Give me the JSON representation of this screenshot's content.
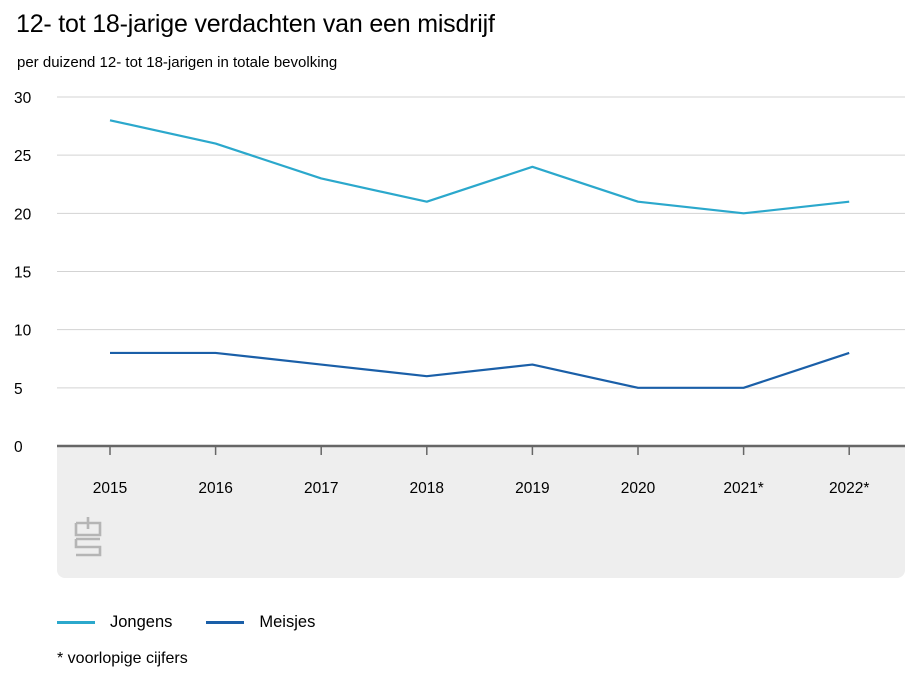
{
  "title": "12- tot 18-jarige verdachten van een misdrijf",
  "subtitle": "per duizend 12- tot 18-jarigen in totale bevolking",
  "footnote": "* voorlopige cijfers",
  "chart_data": {
    "type": "line",
    "categories": [
      "2015",
      "2016",
      "2017",
      "2018",
      "2019",
      "2020",
      "2021*",
      "2022*"
    ],
    "series": [
      {
        "name": "Jongens",
        "color": "#2ba8cc",
        "values": [
          28,
          26,
          23,
          21,
          24,
          21,
          20,
          21
        ]
      },
      {
        "name": "Meisjes",
        "color": "#1a5fa8",
        "values": [
          8,
          8,
          7,
          6,
          7,
          5,
          5,
          8
        ]
      }
    ],
    "ylim": [
      0,
      30
    ],
    "yticks": [
      0,
      5,
      10,
      15,
      20,
      25,
      30
    ],
    "grid": true,
    "legend": "bottom"
  }
}
